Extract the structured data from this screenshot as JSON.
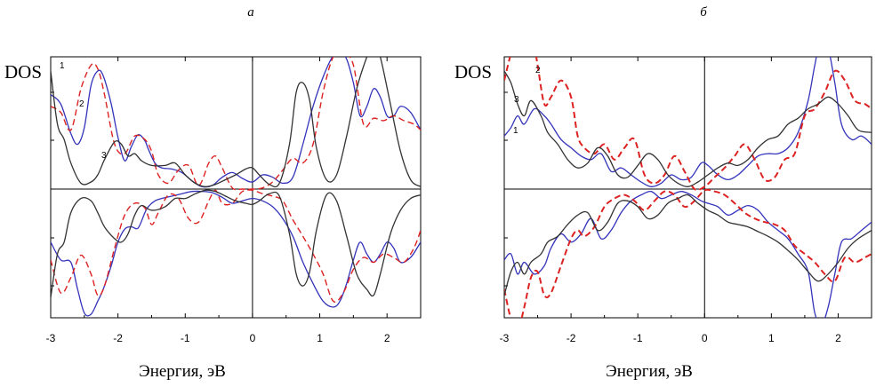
{
  "chart_data": [
    {
      "type": "line",
      "panel_label": "а",
      "ylabel": "DOS",
      "xlabel": "Энергия, эВ",
      "xlim": [
        -3,
        2.5
      ],
      "xticks": [
        "-3",
        "-2",
        "-1",
        "0",
        "1",
        "2"
      ],
      "curve_labels": [
        "1",
        "2",
        "3"
      ],
      "up_baseline": 0,
      "series": [
        {
          "color": "#3333bb",
          "style": "solid",
          "x": [
            -3.0,
            -2.85,
            -2.7,
            -2.6,
            -2.5,
            -2.4,
            -2.3,
            -2.22,
            -2.1,
            -2.0,
            -1.9,
            -1.8,
            -1.7,
            -1.6,
            -1.55,
            -1.45,
            -1.35,
            -1.2,
            -1.05,
            -0.9,
            -0.75,
            -0.6,
            -0.45,
            -0.3,
            -0.15,
            0.0,
            0.15,
            0.3,
            0.45,
            0.6,
            0.75,
            0.9,
            1.05,
            1.2,
            1.3,
            1.4,
            1.5,
            1.6,
            1.7,
            1.8,
            1.9,
            2.0,
            2.1,
            2.2,
            2.35,
            2.5
          ],
          "up": [
            0.8,
            0.72,
            0.47,
            0.38,
            0.52,
            0.88,
            1.0,
            0.96,
            0.72,
            0.44,
            0.24,
            0.36,
            0.46,
            0.41,
            0.34,
            0.22,
            0.18,
            0.17,
            0.14,
            0.07,
            0.02,
            0.03,
            0.1,
            0.14,
            0.09,
            0.06,
            0.12,
            0.1,
            0.05,
            0.1,
            0.38,
            0.7,
            0.95,
            1.13,
            1.15,
            1.1,
            0.9,
            0.62,
            0.7,
            0.85,
            0.78,
            0.62,
            0.62,
            0.7,
            0.65,
            0.5
          ],
          "down": [
            -0.45,
            -0.6,
            -0.62,
            -0.85,
            -1.05,
            -1.06,
            -0.95,
            -0.85,
            -0.65,
            -0.45,
            -0.34,
            -0.32,
            -0.33,
            -0.2,
            -0.15,
            -0.1,
            -0.08,
            -0.06,
            -0.04,
            -0.02,
            -0.02,
            -0.03,
            -0.07,
            -0.12,
            -0.1,
            -0.08,
            -0.1,
            -0.15,
            -0.25,
            -0.4,
            -0.62,
            -0.8,
            -0.95,
            -1.0,
            -0.95,
            -0.8,
            -0.6,
            -0.45,
            -0.55,
            -0.62,
            -0.55,
            -0.45,
            -0.5,
            -0.62,
            -0.58,
            -0.45
          ]
        },
        {
          "color": "#dd2222",
          "style": "dashed",
          "x": [
            -3.0,
            -2.85,
            -2.7,
            -2.55,
            -2.4,
            -2.3,
            -2.2,
            -2.05,
            -1.9,
            -1.75,
            -1.6,
            -1.5,
            -1.4,
            -1.25,
            -1.1,
            -0.95,
            -0.8,
            -0.65,
            -0.55,
            -0.45,
            -0.3,
            -0.15,
            0.0,
            0.15,
            0.3,
            0.45,
            0.6,
            0.75,
            0.9,
            1.05,
            1.2,
            1.35,
            1.5,
            1.65,
            1.8,
            1.95,
            2.1,
            2.25,
            2.4,
            2.5
          ],
          "up": [
            0.7,
            0.65,
            0.5,
            0.85,
            1.05,
            1.02,
            0.8,
            0.38,
            0.3,
            0.45,
            0.42,
            0.32,
            0.12,
            0.05,
            0.16,
            0.2,
            0.03,
            0.22,
            0.28,
            0.18,
            0.01,
            0.0,
            0.0,
            0.01,
            0.06,
            0.16,
            0.26,
            0.22,
            0.38,
            0.82,
            1.12,
            1.15,
            1.05,
            0.55,
            0.6,
            0.58,
            0.62,
            0.58,
            0.55,
            0.5
          ],
          "down": [
            -0.6,
            -0.88,
            -0.75,
            -0.56,
            -0.72,
            -0.9,
            -0.82,
            -0.5,
            -0.22,
            -0.12,
            -0.16,
            -0.3,
            -0.2,
            -0.05,
            -0.08,
            -0.25,
            -0.28,
            -0.1,
            -0.01,
            -0.12,
            -0.12,
            -0.02,
            -0.01,
            -0.04,
            -0.06,
            -0.1,
            -0.26,
            -0.4,
            -0.55,
            -0.72,
            -0.95,
            -0.88,
            -0.68,
            -0.58,
            -0.62,
            -0.55,
            -0.58,
            -0.62,
            -0.5,
            -0.35
          ]
        },
        {
          "color": "#333333",
          "style": "solid",
          "x": [
            -3.0,
            -2.9,
            -2.8,
            -2.7,
            -2.55,
            -2.4,
            -2.3,
            -2.2,
            -2.05,
            -1.95,
            -1.85,
            -1.75,
            -1.65,
            -1.5,
            -1.3,
            -1.15,
            -1.0,
            -0.85,
            -0.7,
            -0.55,
            -0.4,
            -0.25,
            -0.1,
            0.0,
            0.1,
            0.25,
            0.4,
            0.55,
            0.65,
            0.75,
            0.85,
            0.95,
            1.1,
            1.25,
            1.4,
            1.55,
            1.7,
            1.8,
            1.9,
            2.05,
            2.2,
            2.35,
            2.5
          ],
          "up": [
            1.0,
            0.55,
            0.42,
            0.22,
            0.05,
            0.06,
            0.12,
            0.25,
            0.4,
            0.38,
            0.28,
            0.3,
            0.24,
            0.2,
            0.2,
            0.22,
            0.12,
            0.05,
            0.02,
            0.04,
            0.08,
            0.12,
            0.17,
            0.18,
            0.12,
            0.04,
            0.05,
            0.38,
            0.82,
            0.9,
            0.75,
            0.35,
            0.08,
            0.12,
            0.45,
            0.85,
            1.12,
            1.25,
            1.12,
            0.72,
            0.32,
            0.08,
            0.02
          ],
          "down": [
            -0.92,
            -0.55,
            -0.45,
            -0.2,
            -0.08,
            -0.1,
            -0.2,
            -0.32,
            -0.42,
            -0.45,
            -0.38,
            -0.22,
            -0.14,
            -0.18,
            -0.15,
            -0.08,
            -0.08,
            -0.04,
            -0.01,
            -0.02,
            -0.06,
            -0.1,
            -0.12,
            -0.13,
            -0.1,
            -0.04,
            -0.06,
            -0.38,
            -0.72,
            -0.82,
            -0.7,
            -0.35,
            -0.05,
            -0.1,
            -0.4,
            -0.72,
            -0.85,
            -0.9,
            -0.72,
            -0.38,
            -0.18,
            -0.08,
            -0.05
          ]
        }
      ]
    },
    {
      "type": "line",
      "panel_label": "б",
      "ylabel": "DOS",
      "xlabel": "Энергия, эВ",
      "xlim": [
        -3,
        2.5
      ],
      "xticks": [
        "-3",
        "-2",
        "-1",
        "0",
        "1",
        "2"
      ],
      "curve_labels": [
        "2",
        "3",
        "1"
      ],
      "up_baseline": 0,
      "series": [
        {
          "color": "#3333bb",
          "style": "solid",
          "x": [
            -3.0,
            -2.9,
            -2.8,
            -2.7,
            -2.55,
            -2.4,
            -2.3,
            -2.15,
            -2.0,
            -1.85,
            -1.7,
            -1.55,
            -1.4,
            -1.25,
            -1.1,
            -0.95,
            -0.8,
            -0.65,
            -0.5,
            -0.35,
            -0.2,
            -0.05,
            0.05,
            0.2,
            0.35,
            0.5,
            0.65,
            0.8,
            0.95,
            1.1,
            1.25,
            1.4,
            1.55,
            1.65,
            1.75,
            1.85,
            1.95,
            2.05,
            2.2,
            2.35,
            2.5
          ],
          "up": [
            0.45,
            0.52,
            0.62,
            0.55,
            0.68,
            0.62,
            0.55,
            0.42,
            0.35,
            0.28,
            0.25,
            0.3,
            0.15,
            0.18,
            0.12,
            0.06,
            0.02,
            0.05,
            0.12,
            0.08,
            0.1,
            0.22,
            0.2,
            0.12,
            0.08,
            0.12,
            0.2,
            0.28,
            0.3,
            0.3,
            0.35,
            0.48,
            0.75,
            1.05,
            1.3,
            1.2,
            0.9,
            0.55,
            0.42,
            0.45,
            0.38
          ],
          "down": [
            -0.6,
            -0.55,
            -0.72,
            -0.62,
            -0.72,
            -0.65,
            -0.5,
            -0.38,
            -0.45,
            -0.38,
            -0.25,
            -0.42,
            -0.35,
            -0.2,
            -0.1,
            -0.05,
            -0.02,
            -0.08,
            -0.05,
            -0.02,
            -0.05,
            -0.1,
            -0.12,
            -0.15,
            -0.22,
            -0.18,
            -0.14,
            -0.18,
            -0.28,
            -0.35,
            -0.42,
            -0.55,
            -0.7,
            -1.05,
            -1.15,
            -1.0,
            -0.72,
            -0.45,
            -0.42,
            -0.35,
            -0.28
          ]
        },
        {
          "color": "#dd2222",
          "style": "dashed",
          "x": [
            -3.0,
            -2.9,
            -2.8,
            -2.7,
            -2.6,
            -2.5,
            -2.4,
            -2.3,
            -2.15,
            -2.0,
            -1.9,
            -1.8,
            -1.65,
            -1.5,
            -1.35,
            -1.2,
            -1.05,
            -0.9,
            -0.75,
            -0.6,
            -0.45,
            -0.3,
            -0.15,
            0.0,
            0.15,
            0.3,
            0.45,
            0.6,
            0.75,
            0.9,
            1.05,
            1.2,
            1.35,
            1.5,
            1.65,
            1.8,
            1.95,
            2.1,
            2.25,
            2.4,
            2.5
          ],
          "up": [
            0.92,
            1.15,
            1.35,
            1.45,
            1.38,
            1.05,
            0.72,
            0.78,
            0.92,
            0.78,
            0.45,
            0.35,
            0.3,
            0.38,
            0.25,
            0.35,
            0.42,
            0.12,
            0.05,
            0.12,
            0.28,
            0.15,
            0.0,
            0.02,
            0.1,
            0.18,
            0.28,
            0.38,
            0.25,
            0.08,
            0.1,
            0.25,
            0.3,
            0.62,
            0.68,
            0.82,
            1.0,
            0.92,
            0.75,
            0.72,
            0.68
          ],
          "down": [
            -0.85,
            -1.1,
            -1.2,
            -1.0,
            -0.75,
            -0.7,
            -0.9,
            -0.88,
            -0.65,
            -0.42,
            -0.35,
            -0.4,
            -0.32,
            -0.15,
            -0.08,
            -0.05,
            -0.1,
            -0.18,
            -0.1,
            -0.02,
            -0.05,
            -0.15,
            -0.1,
            -0.01,
            -0.02,
            -0.05,
            -0.12,
            -0.2,
            -0.25,
            -0.28,
            -0.3,
            -0.35,
            -0.48,
            -0.55,
            -0.62,
            -0.72,
            -0.78,
            -0.58,
            -0.62,
            -0.58,
            -0.55
          ]
        },
        {
          "color": "#333333",
          "style": "solid",
          "x": [
            -3.0,
            -2.9,
            -2.8,
            -2.7,
            -2.6,
            -2.45,
            -2.35,
            -2.2,
            -2.05,
            -1.9,
            -1.75,
            -1.6,
            -1.45,
            -1.3,
            -1.15,
            -1.0,
            -0.85,
            -0.7,
            -0.55,
            -0.4,
            -0.25,
            -0.1,
            0.05,
            0.2,
            0.35,
            0.5,
            0.65,
            0.8,
            0.95,
            1.1,
            1.25,
            1.4,
            1.55,
            1.7,
            1.85,
            2.0,
            2.15,
            2.3,
            2.5
          ],
          "up": [
            1.0,
            0.9,
            0.72,
            0.62,
            0.75,
            0.62,
            0.48,
            0.38,
            0.25,
            0.18,
            0.22,
            0.35,
            0.28,
            0.12,
            0.1,
            0.2,
            0.3,
            0.25,
            0.12,
            0.05,
            0.02,
            0.06,
            0.12,
            0.18,
            0.22,
            0.2,
            0.25,
            0.35,
            0.42,
            0.45,
            0.55,
            0.6,
            0.68,
            0.72,
            0.78,
            0.72,
            0.62,
            0.5,
            0.48
          ],
          "down": [
            -0.9,
            -0.7,
            -0.62,
            -0.72,
            -0.62,
            -0.55,
            -0.45,
            -0.4,
            -0.3,
            -0.22,
            -0.2,
            -0.35,
            -0.28,
            -0.12,
            -0.1,
            -0.15,
            -0.25,
            -0.22,
            -0.12,
            -0.08,
            -0.05,
            -0.12,
            -0.18,
            -0.22,
            -0.28,
            -0.3,
            -0.32,
            -0.36,
            -0.4,
            -0.45,
            -0.52,
            -0.6,
            -0.7,
            -0.78,
            -0.72,
            -0.62,
            -0.5,
            -0.42,
            -0.35
          ]
        }
      ]
    }
  ]
}
